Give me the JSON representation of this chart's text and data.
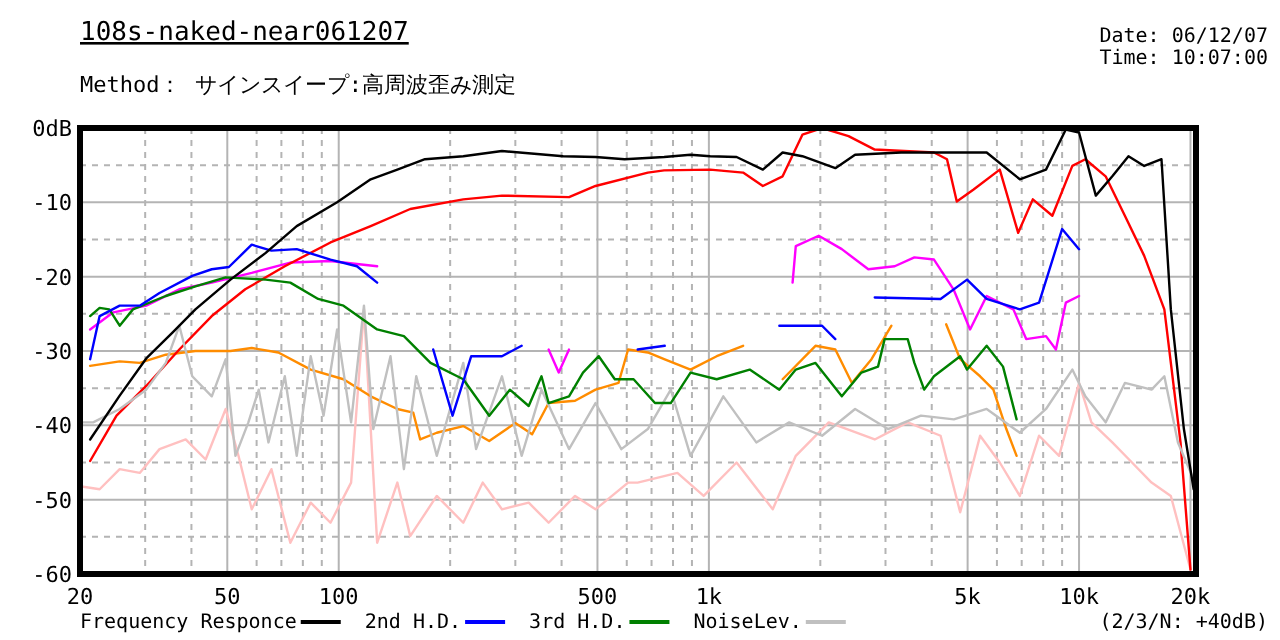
{
  "chart_data": {
    "type": "line",
    "title": "108s-naked-near061207",
    "subtitle": "Method： サインスイープ:高周波歪み測定",
    "annotations": [
      "Date: 06/12/07",
      "Time: 10:07:00",
      "(2/3/N: +40dB)"
    ],
    "log": "x",
    "grid": true,
    "legend": "bottom",
    "line_style": "solid",
    "marker": "none",
    "xlim": [
      20,
      20700
    ],
    "ylim": [
      -60,
      0
    ],
    "xticks": [
      20,
      {
        "value": 30,
        "label": null
      },
      {
        "value": 40,
        "label": null
      },
      50,
      {
        "value": 60,
        "label": null
      },
      {
        "value": 70,
        "label": null
      },
      {
        "value": 80,
        "label": null
      },
      {
        "value": 90,
        "label": null
      },
      100,
      {
        "value": 200,
        "label": null
      },
      {
        "value": 300,
        "label": null
      },
      {
        "value": 400,
        "label": null
      },
      500,
      {
        "value": 600,
        "label": null
      },
      {
        "value": 700,
        "label": null
      },
      {
        "value": 800,
        "label": null
      },
      {
        "value": 900,
        "label": null
      },
      {
        "value": 1000,
        "label": "1k"
      },
      {
        "value": 2000,
        "label": null
      },
      {
        "value": 3000,
        "label": null
      },
      {
        "value": 4000,
        "label": null
      },
      {
        "value": 5000,
        "label": "5k"
      },
      {
        "value": 6000,
        "label": null
      },
      {
        "value": 7000,
        "label": null
      },
      {
        "value": 8000,
        "label": null
      },
      {
        "value": 9000,
        "label": null
      },
      {
        "value": 10000,
        "label": "10k"
      },
      {
        "value": 20000,
        "label": "20k"
      }
    ],
    "yticks": [
      {
        "value": 0,
        "label": "0dB"
      },
      {
        "value": -5,
        "label": null
      },
      -10,
      {
        "value": -15,
        "label": null
      },
      -20,
      {
        "value": -25,
        "label": null
      },
      -30,
      {
        "value": -35,
        "label": null
      },
      -40,
      {
        "value": -45,
        "label": null
      },
      -50,
      {
        "value": -55,
        "label": null
      },
      -60
    ],
    "series": [
      {
        "name": "Frequency Responce",
        "color": "#000000",
        "x": [
          21.3,
          25.6,
          30.2,
          35.6,
          41,
          51,
          63.5,
          77,
          99,
          122,
          144,
          171,
          217,
          276,
          404,
          494,
          592,
          757,
          892,
          1008,
          1188,
          1399,
          1582,
          1789,
          2196,
          2483,
          3306,
          4226,
          5629,
          6919,
          8142,
          9211,
          10000,
          11100,
          12300,
          13600,
          15000,
          16700,
          17700,
          19200,
          20400
        ],
        "values": [
          -41.9,
          -36,
          -31,
          -27.5,
          -24.4,
          -20.4,
          -16.8,
          -13.2,
          -10,
          -6.9,
          -5.6,
          -4.2,
          -3.8,
          -3.1,
          -3.8,
          -3.9,
          -4.2,
          -3.9,
          -3.6,
          -3.8,
          -3.9,
          -5.6,
          -3.3,
          -3.8,
          -5.4,
          -3.6,
          -3.3,
          -3.3,
          -3.3,
          -6.9,
          -5.6,
          -0.2,
          -0.6,
          -9.1,
          -6.5,
          -3.8,
          -5.1,
          -4.2,
          -24.4,
          -40.5,
          -48.6
        ]
      },
      {
        "name": "2nd H.D.",
        "color": "#0000ff",
        "x": [
          21.3,
          22.6,
          25.6,
          29,
          32.8,
          40.2,
          45.4,
          50.5,
          58.2,
          65.8,
          77,
          95,
          112,
          127
        ],
        "values": [
          -31.1,
          -25.3,
          -23.9,
          -23.9,
          -22.2,
          -19.9,
          -19,
          -18.7,
          -15.7,
          -16.5,
          -16.3,
          -17.7,
          -18.6,
          -20.8
        ]
      },
      {
        "color": "#0000ff",
        "x": [
          180,
          203,
          228,
          276,
          312
        ],
        "values": [
          -29.8,
          -38.7,
          -30.7,
          -30.7,
          -29.3
        ]
      },
      {
        "color": "#0000ff",
        "x": [
          642,
          760
        ],
        "values": [
          -29.8,
          -29.3
        ]
      },
      {
        "color": "#0000ff",
        "x": [
          1550,
          2022,
          2196
        ],
        "values": [
          -26.6,
          -26.6,
          -28.4
        ]
      },
      {
        "color": "#0000ff",
        "x": [
          2806,
          4226,
          4983,
          5629,
          6919,
          7800,
          9000,
          10000
        ],
        "values": [
          -22.8,
          -23,
          -20.4,
          -23,
          -24.4,
          -23.5,
          -13.6,
          -16.3
        ]
      },
      {
        "name": "3rd H.D.",
        "color": "#008000",
        "x": [
          21.3,
          22.6,
          24,
          25.6,
          27.8,
          34.1,
          41,
          49.5,
          63.5,
          74,
          88,
          103,
          127,
          150,
          177,
          217,
          255,
          290,
          326,
          353,
          369,
          419,
          457,
          504,
          557,
          626,
          715,
          789,
          892,
          1050,
          1289,
          1550,
          1717,
          1941,
          2286,
          2583,
          2864,
          2984,
          3445,
          3590,
          3816,
          4056,
          4774,
          4983,
          5629,
          6232,
          6781
        ],
        "values": [
          -25.3,
          -24.2,
          -24.4,
          -26.6,
          -24.4,
          -22.6,
          -21.3,
          -20.1,
          -20.4,
          -20.8,
          -23,
          -23.9,
          -27.1,
          -28,
          -31.6,
          -33.8,
          -38.7,
          -35.2,
          -37.4,
          -33.4,
          -37,
          -36.1,
          -32.9,
          -30.7,
          -33.8,
          -33.8,
          -37,
          -37,
          -32.9,
          -33.8,
          -32.5,
          -35.2,
          -32.5,
          -31.6,
          -36.1,
          -32.9,
          -32.1,
          -28.4,
          -28.4,
          -31.6,
          -35.2,
          -33.4,
          -30.7,
          -32.5,
          -29.3,
          -32.1,
          -39.2
        ]
      },
      {
        "name": "NoiseLev.",
        "color": "#c0c0c0",
        "x": [
          20,
          21.7,
          25.6,
          30.2,
          34.1,
          37.1,
          40.2,
          45.4,
          49.5,
          52.6,
          57,
          60.8,
          64.6,
          71.5,
          77,
          84,
          91,
          99,
          108,
          117,
          124,
          138,
          150,
          162,
          184,
          217,
          235,
          276,
          312,
          353,
          419,
          494,
          580,
          684,
          789,
          892,
          1094,
          1343,
          1648,
          2022,
          2483,
          3047,
          3740,
          4590,
          5629,
          6919,
          8142,
          9592,
          10400,
          11800,
          13300,
          15700,
          17000,
          18500,
          20200
        ],
        "values": [
          -39.6,
          -39.6,
          -37.8,
          -35.2,
          -31.6,
          -26.6,
          -33.4,
          -36.1,
          -31.1,
          -44.1,
          -39.6,
          -35.2,
          -42.3,
          -33.4,
          -44.1,
          -30.7,
          -38.7,
          -27.1,
          -39.6,
          -23.9,
          -40.5,
          -30.7,
          -45.9,
          -33.4,
          -44.1,
          -31.6,
          -43.2,
          -33.4,
          -44.1,
          -35.2,
          -43.2,
          -37,
          -43.2,
          -40.5,
          -35.2,
          -44.1,
          -36.1,
          -42.3,
          -39.6,
          -41.4,
          -37.8,
          -40.5,
          -38.7,
          -39.2,
          -37.8,
          -41,
          -37.8,
          -32.5,
          -36.1,
          -39.6,
          -34.3,
          -35.2,
          -33.4,
          -42.3,
          -46.8
        ]
      },
      {
        "color": "#ff0000",
        "x": [
          21.3,
          25.1,
          30.2,
          37.1,
          45.4,
          55.9,
          71.5,
          95,
          122,
          156,
          217,
          276,
          419,
          494,
          684,
          757,
          1008,
          1237,
          1399,
          1582,
          1789,
          2022,
          2384,
          2806,
          4056,
          4398,
          4674,
          5179,
          6107,
          6848,
          7500,
          8471,
          9592,
          10400,
          11800,
          13300,
          15000,
          17000,
          18800,
          20000
        ],
        "values": [
          -44.8,
          -38.7,
          -34.7,
          -29.8,
          -25.3,
          -21.7,
          -18.6,
          -15.4,
          -13.2,
          -10.9,
          -9.6,
          -9.1,
          -9.3,
          -7.8,
          -6,
          -5.7,
          -5.6,
          -6,
          -7.8,
          -6.5,
          -0.9,
          0,
          -1.1,
          -2.9,
          -3.3,
          -4.2,
          -9.9,
          -8.3,
          -5.6,
          -14.1,
          -9.6,
          -11.8,
          -5.1,
          -4.2,
          -6.5,
          -11.8,
          -17.2,
          -24.4,
          -42.3,
          -59.4
        ]
      },
      {
        "color": "#ff00ff",
        "x": [
          21.3,
          24.6,
          30.2,
          37.1,
          45.4,
          58.2,
          74,
          95,
          112,
          127
        ],
        "values": [
          -27.1,
          -24.8,
          -23.9,
          -21.7,
          -20.8,
          -19.5,
          -18.1,
          -17.9,
          -18.3,
          -18.6
        ]
      },
      {
        "color": "#ff00ff",
        "x": [
          369,
          393,
          419
        ],
        "values": [
          -29.8,
          -32.9,
          -29.8
        ]
      },
      {
        "color": "#ff00ff",
        "x": [
          1683,
          1717,
          1980,
          2286,
          2696,
          3177,
          3590,
          4056,
          4580,
          5077,
          5629,
          6647,
          7199,
          8142,
          8660,
          9211,
          10000
        ],
        "values": [
          -20.8,
          -15.9,
          -14.5,
          -16.3,
          -19,
          -18.6,
          -17.4,
          -17.7,
          -21.7,
          -27.1,
          -22.6,
          -24.4,
          -28.4,
          -28,
          -29.8,
          -23.5,
          -22.6
        ]
      },
      {
        "color": "#ff8c00",
        "x": [
          21.3,
          25.6,
          29,
          34.1,
          41,
          51,
          58.2,
          68.7,
          84,
          103,
          122,
          144,
          159,
          166,
          184,
          217,
          255,
          300,
          333,
          369,
          435,
          494,
          570,
          605,
          684,
          757,
          892,
          1050,
          1237
        ],
        "values": [
          -32,
          -31.4,
          -31.6,
          -30.5,
          -30,
          -30,
          -29.6,
          -30.2,
          -32.5,
          -33.8,
          -36.1,
          -37.8,
          -38.3,
          -41.9,
          -41,
          -40.1,
          -42.1,
          -39.7,
          -41.2,
          -37,
          -36.7,
          -35.2,
          -34.3,
          -29.8,
          -30.2,
          -31.1,
          -32.5,
          -30.7,
          -29.3
        ]
      },
      {
        "color": "#ff8c00",
        "x": [
          1582,
          1941,
          2196,
          2434,
          2750,
          3113
        ],
        "values": [
          -33.8,
          -29.3,
          -29.8,
          -34.3,
          -31.1,
          -26.6
        ]
      },
      {
        "color": "#ff8c00",
        "x": [
          4375,
          4774,
          5404,
          5869,
          6362,
          6781
        ],
        "values": [
          -26.4,
          -31.1,
          -33.4,
          -35.2,
          -40.5,
          -44.1
        ]
      },
      {
        "color": "#ffc0c0",
        "x": [
          20,
          22.6,
          25.6,
          29,
          32.8,
          38.6,
          43.7,
          49.5,
          53.6,
          58.2,
          65.8,
          74,
          84,
          95,
          108,
          117,
          127,
          144,
          156,
          184,
          217,
          245,
          276,
          326,
          369,
          435,
          494,
          605,
          642,
          822,
          968,
          1188,
          1488,
          1717,
          2108,
          2806,
          3445,
          4226,
          4774,
          5404,
          6107,
          6919,
          7800,
          8833,
          10000,
          10800,
          12300,
          13900,
          15700,
          17700,
          20000
        ],
        "values": [
          -48.2,
          -48.6,
          -45.9,
          -46.4,
          -43.2,
          -41.9,
          -44.6,
          -37.8,
          -44.1,
          -51.3,
          -45.9,
          -55.8,
          -50.4,
          -53.1,
          -47.7,
          -24.4,
          -55.8,
          -47.7,
          -54.9,
          -49.5,
          -53.1,
          -47.7,
          -51.3,
          -50.4,
          -53.1,
          -49.5,
          -51.3,
          -47.7,
          -47.7,
          -46.4,
          -49.5,
          -45,
          -51.3,
          -44.1,
          -39.6,
          -41.9,
          -39.6,
          -41.4,
          -51.7,
          -41.4,
          -45,
          -49.5,
          -41.4,
          -44.1,
          -34.3,
          -39.6,
          -42.3,
          -45,
          -47.7,
          -49.5,
          -59.4
        ]
      }
    ]
  }
}
